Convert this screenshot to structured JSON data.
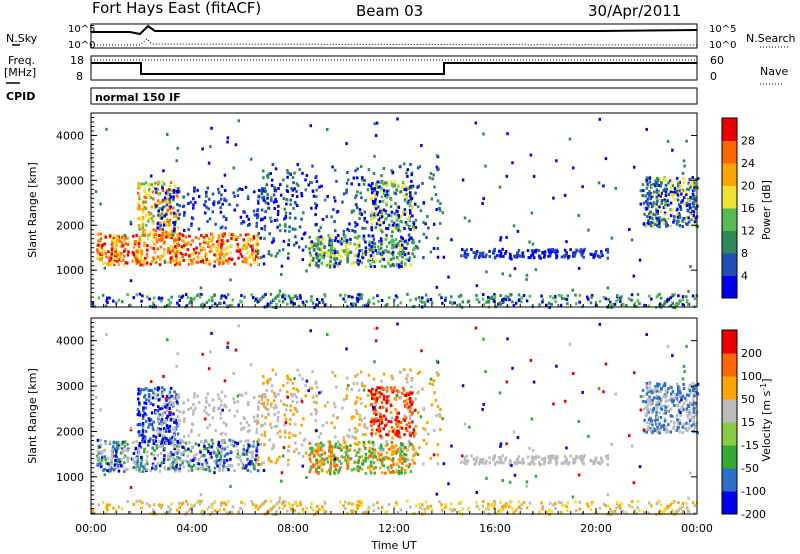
{
  "header": {
    "station": "Fort Hays East (fitACF)",
    "beam": "Beam 03",
    "date": "30/Apr/2011"
  },
  "top_strip": {
    "left_labels": [
      "N.Sky",
      "Freq.",
      "[MHz]",
      "CPID"
    ],
    "right_labels": [
      "N.Search",
      "Nave"
    ],
    "noise_ticks": [
      "10^5",
      "10^0"
    ],
    "freq_ticks": [
      "18",
      "8"
    ],
    "nave_ticks": [
      "60",
      "0"
    ],
    "cpid_text": "normal 150 IF"
  },
  "chart_data": [
    {
      "type": "line",
      "panel": "noise",
      "ylabel": "N.Sky",
      "right_label": "N.Search",
      "yticks": [
        "10^5",
        "10^0"
      ],
      "series": [
        {
          "name": "N.Sky",
          "x": [
            "00:00",
            "01:30",
            "02:00",
            "03:00",
            "06:00",
            "12:00",
            "18:00",
            "21:00",
            "00:00"
          ],
          "values": [
            "10^5",
            "10^5",
            "10^4",
            "10^5",
            "10^5",
            "10^5",
            "10^5",
            "10^5",
            "10^5"
          ]
        },
        {
          "name": "N.Search",
          "x": [
            "00:00",
            "02:30",
            "06:00",
            "12:00",
            "18:00",
            "00:00"
          ],
          "values": [
            "10^0",
            "10^2",
            "10^0",
            "10^0",
            "10^0",
            "10^0"
          ]
        }
      ]
    },
    {
      "type": "line",
      "panel": "frequency",
      "ylabel": "Freq. [MHz]",
      "right_label": "Nave",
      "yticks": [
        18,
        8
      ],
      "right_yticks": [
        60,
        0
      ],
      "series": [
        {
          "name": "Freq.",
          "x": [
            "00:00",
            "02:00",
            "02:00",
            "14:00",
            "14:00",
            "00:00"
          ],
          "values": [
            16,
            16,
            11,
            11,
            16,
            16
          ]
        },
        {
          "name": "Nave",
          "x": [
            "00:00",
            "00:00"
          ],
          "values": [
            60,
            60
          ]
        }
      ]
    },
    {
      "type": "heatmap",
      "panel": "power",
      "xlabel": "Time UT",
      "ylabel": "Slant Range [km]",
      "colorbar_label": "Power [dB]",
      "colorbar_ticks": [
        28,
        24,
        20,
        16,
        12,
        8,
        4
      ],
      "yticks": [
        1000,
        2000,
        3000,
        4000
      ],
      "xticks": [
        "00:00",
        "04:00",
        "08:00",
        "12:00",
        "16:00",
        "20:00",
        "00:00"
      ],
      "xlim": [
        0,
        24
      ],
      "ylim": [
        180,
        4500
      ]
    },
    {
      "type": "heatmap",
      "panel": "velocity",
      "xlabel": "Time UT",
      "ylabel": "Slant Range [km]",
      "colorbar_label": "Velocity [m s^-1]",
      "colorbar_ticks": [
        200,
        100,
        50,
        15,
        -15,
        -50,
        -100,
        -200
      ],
      "yticks": [
        1000,
        2000,
        3000,
        4000
      ],
      "xticks": [
        "00:00",
        "04:00",
        "08:00",
        "12:00",
        "16:00",
        "20:00",
        "00:00"
      ],
      "xlim": [
        0,
        24
      ],
      "ylim": [
        180,
        4500
      ]
    }
  ],
  "colors": {
    "power_scale": [
      "#0000ee",
      "#1f4fb8",
      "#2e8b57",
      "#55bb55",
      "#f0e030",
      "#ffa500",
      "#ff6600",
      "#ee0000"
    ],
    "velocity_scale": [
      "#0000ee",
      "#2a70c8",
      "#33aa33",
      "#88cc44",
      "#bbbbbb",
      "#ffa500",
      "#ff6600",
      "#ee0000"
    ]
  },
  "axes": {
    "ylabel": "Slant Range [km]",
    "xlabel": "Time UT",
    "xticks": [
      "00:00",
      "04:00",
      "08:00",
      "12:00",
      "16:00",
      "20:00",
      "00:00"
    ],
    "yticks": [
      "4000",
      "3000",
      "2000",
      "1000"
    ]
  }
}
